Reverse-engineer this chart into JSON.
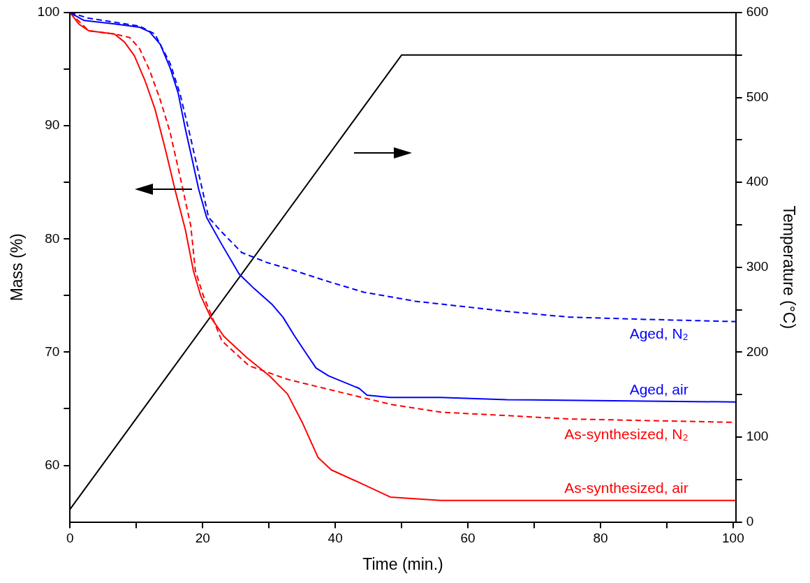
{
  "chart_data": {
    "type": "line",
    "xlabel": "Time (min.)",
    "ylabel": "Mass (%)",
    "y2label": "Temperature (°C)",
    "xlim": [
      0,
      100.4
    ],
    "xticks": [
      0,
      {
        "value": 10,
        "label": null
      },
      20,
      {
        "value": 30,
        "label": null
      },
      40,
      {
        "value": 50,
        "label": null
      },
      60,
      {
        "value": 70,
        "label": null
      },
      80,
      {
        "value": 90,
        "label": null
      },
      100
    ],
    "ylim": [
      55,
      100
    ],
    "yticks": [
      60,
      {
        "value": 65,
        "label": null
      },
      70,
      {
        "value": 75,
        "label": null
      },
      80,
      {
        "value": 85,
        "label": null
      },
      90,
      {
        "value": 95,
        "label": null
      },
      100
    ],
    "y2lim": [
      0,
      600
    ],
    "y2ticks": [
      0,
      {
        "value": 50,
        "label": null
      },
      100,
      {
        "value": 150,
        "label": null
      },
      200,
      {
        "value": 250,
        "label": null
      },
      300,
      {
        "value": 350,
        "label": null
      },
      400,
      {
        "value": 450,
        "label": null
      },
      500,
      {
        "value": 550,
        "label": null
      },
      600
    ],
    "grid": false,
    "legend": false,
    "marker": "none",
    "series": [
      {
        "name": "Aged, N₂",
        "color": "#0000ff",
        "line_style": "dashed",
        "x": [
          0,
          2.8,
          10.5,
          12.8,
          15.1,
          16.6,
          18.2,
          20.9,
          22.9,
          25.9,
          29.8,
          32.8,
          38.6,
          44.3,
          52.1,
          59.8,
          65.9,
          75.2,
          86.7,
          100.4
        ],
        "values": [
          100,
          99.5,
          98.8,
          98.1,
          95.5,
          92.8,
          88.9,
          81.9,
          80.6,
          78.8,
          77.9,
          77.4,
          76.3,
          75.3,
          74.5,
          74.0,
          73.6,
          73.1,
          72.9,
          72.7
        ]
      },
      {
        "name": "Aged, air",
        "color": "#0000ff",
        "line_style": "solid",
        "x": [
          0,
          2.1,
          6.7,
          10.5,
          12.0,
          13.6,
          15.1,
          16.3,
          17.4,
          18.2,
          19.4,
          20.6,
          22.9,
          25.5,
          27.8,
          30.5,
          32.1,
          33.9,
          35.6,
          37.1,
          39.0,
          43.6,
          44.8,
          48.3,
          55.9,
          65.9,
          100.4
        ],
        "values": [
          100,
          99.3,
          99.0,
          98.7,
          98.3,
          97.2,
          95.1,
          92.9,
          89.7,
          87.6,
          84.4,
          81.9,
          79.5,
          76.9,
          75.6,
          74.2,
          73.1,
          71.4,
          69.9,
          68.6,
          67.9,
          66.8,
          66.2,
          66.0,
          66.0,
          65.8,
          65.6
        ]
      },
      {
        "name": "As-synthesized, N₂",
        "color": "#ff0000",
        "line_style": "dashed",
        "x": [
          0,
          2.8,
          6.7,
          9.0,
          10.5,
          12.0,
          13.6,
          15.1,
          16.6,
          18.2,
          18.9,
          20.1,
          22.9,
          27.0,
          32.8,
          40.5,
          48.3,
          55.9,
          65.9,
          75.2,
          100.4
        ],
        "values": [
          100,
          98.4,
          98.1,
          97.8,
          96.8,
          94.9,
          92.3,
          89.4,
          85.5,
          81.2,
          77.2,
          75.0,
          71.0,
          68.8,
          67.6,
          66.5,
          65.4,
          64.7,
          64.4,
          64.1,
          63.8
        ]
      },
      {
        "name": "As-synthesized, air",
        "color": "#ff0000",
        "line_style": "solid",
        "x": [
          0,
          1.3,
          2.8,
          6.7,
          8.2,
          9.7,
          11.3,
          12.8,
          14.3,
          15.9,
          17.4,
          18.6,
          19.7,
          21.2,
          23.2,
          26.7,
          30.1,
          32.8,
          35.1,
          37.4,
          39.4,
          44.3,
          48.3,
          55.9,
          65.9,
          100.4
        ],
        "values": [
          100,
          99.0,
          98.4,
          98.1,
          97.4,
          96.2,
          94.0,
          91.5,
          88.1,
          84.2,
          80.8,
          77.2,
          75.0,
          73.1,
          71.4,
          69.5,
          67.9,
          66.3,
          63.7,
          60.7,
          59.6,
          58.3,
          57.2,
          56.9,
          56.9,
          56.9
        ]
      },
      {
        "color": "#000000",
        "line_style": "solid",
        "axis": "y2",
        "x": [
          0,
          50,
          100.4
        ],
        "values": [
          15,
          550,
          550
        ]
      }
    ]
  }
}
